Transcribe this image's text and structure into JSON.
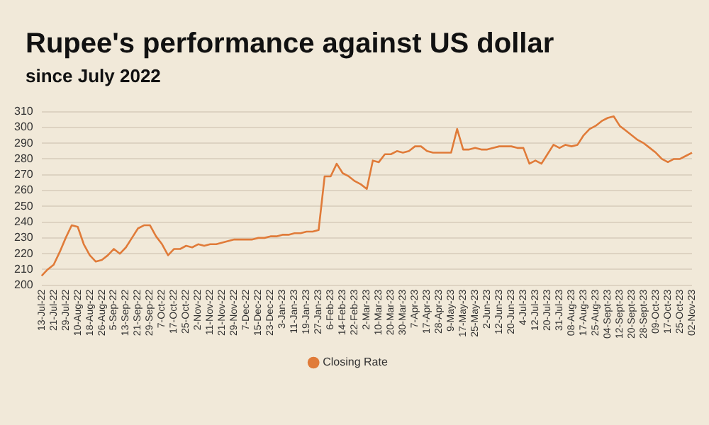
{
  "chart_data": {
    "type": "line",
    "title": "Rupee's performance against US dollar",
    "subtitle": "since July 2022",
    "categories": [
      "13-Jul-22",
      null,
      "21-Jul-22",
      null,
      "29-Jul-22",
      null,
      "10-Aug-22",
      null,
      "18-Aug-22",
      null,
      "26-Aug-22",
      null,
      "5-Sep-22",
      null,
      "13-Sep-22",
      null,
      "21-Sep-22",
      null,
      "29-Sep-22",
      null,
      "7-Oct-22",
      null,
      "17-Oct-22",
      null,
      "25-Oct-22",
      null,
      "2-Nov-22",
      null,
      "11-Nov-22",
      null,
      "21-Nov-22",
      null,
      "29-Nov-22",
      null,
      "7-Dec-22",
      null,
      "15-Dec-22",
      null,
      "23-Dec-22",
      null,
      "3-Jan-23",
      null,
      "11-Jan-23",
      null,
      "19-Jan-23",
      null,
      "27-Jan-23",
      null,
      "6-Feb-23",
      null,
      "14-Feb-23",
      null,
      "22-Feb-23",
      null,
      "2-Mar-23",
      null,
      "10-Mar-23",
      null,
      "20-Mar-23",
      null,
      "30-Mar-23",
      null,
      "7-Apr-23",
      null,
      "17-Apr-23",
      null,
      "28-Apr-23",
      null,
      "9-May-23",
      null,
      "17-May-23",
      null,
      "25-May-23",
      null,
      "2-Jun-23",
      null,
      "12-Jun-23",
      null,
      "20-Jun-23",
      null,
      "4-Jul-23",
      null,
      "12-Jul-23",
      null,
      "20-Jul-23",
      null,
      "31-Jul-23",
      null,
      "08-Aug-23",
      null,
      "17-Aug-23",
      null,
      "25-Aug-23",
      null,
      "04-Sept-23",
      null,
      "12-Sept-23",
      null,
      "20-Sept-23",
      null,
      "28-Sept-23",
      null,
      "09-Oct-23",
      null,
      "17-Oct-23",
      null,
      "25-Oct-23",
      null,
      "02-Nov-23"
    ],
    "series": [
      {
        "name": "Closing Rate",
        "color": "#e07b39",
        "values": [
          206,
          210,
          213,
          221,
          230,
          238,
          237,
          226,
          219,
          215,
          216,
          219,
          223,
          220,
          224,
          230,
          236,
          238,
          238,
          231,
          226,
          219,
          223,
          223,
          225,
          224,
          226,
          225,
          226,
          226,
          227,
          228,
          229,
          229,
          229,
          229,
          230,
          230,
          231,
          231,
          232,
          232,
          233,
          233,
          234,
          234,
          235,
          269,
          269,
          277,
          271,
          269,
          266,
          264,
          261,
          279,
          278,
          283,
          283,
          285,
          284,
          285,
          288,
          288,
          285,
          284,
          284,
          284,
          284,
          299,
          286,
          286,
          287,
          286,
          286,
          287,
          288,
          288,
          288,
          287,
          287,
          277,
          279,
          277,
          283,
          289,
          287,
          289,
          288,
          289,
          295,
          299,
          301,
          304,
          306,
          307,
          301,
          298,
          295,
          292,
          290,
          287,
          284,
          280,
          278,
          280,
          280,
          282,
          284
        ]
      }
    ],
    "ylim": [
      200,
      310
    ],
    "yticks": [
      200,
      210,
      220,
      230,
      240,
      250,
      260,
      270,
      280,
      290,
      300,
      310
    ],
    "grid": "y",
    "legend": "bottom",
    "marker": "none",
    "line_style": "solid"
  }
}
